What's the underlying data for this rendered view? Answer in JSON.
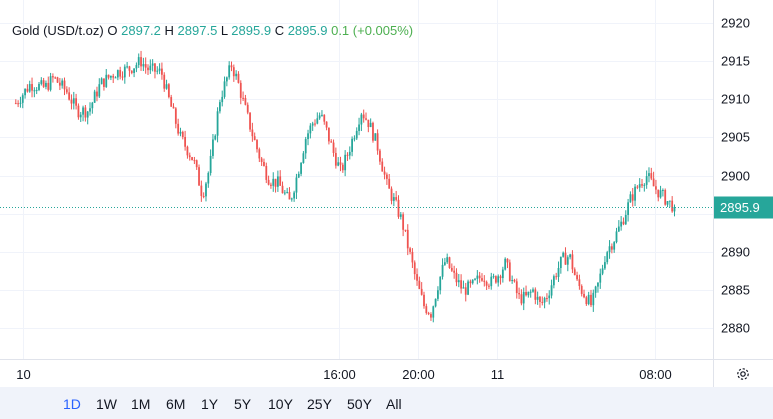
{
  "legend": {
    "symbol": "Gold (USD/t.oz)",
    "o_label": "O",
    "o_value": "2897.2",
    "h_label": "H",
    "h_value": "2897.5",
    "l_label": "L",
    "l_value": "2895.9",
    "c_label": "C",
    "c_value": "2895.9",
    "change": "0.1",
    "change_pct": "(+0.005%)"
  },
  "price_tag": "2895.9",
  "timeframes": [
    {
      "label": "1D",
      "active": true
    },
    {
      "label": "1W",
      "active": false
    },
    {
      "label": "1M",
      "active": false
    },
    {
      "label": "6M",
      "active": false
    },
    {
      "label": "1Y",
      "active": false
    },
    {
      "label": "5Y",
      "active": false
    },
    {
      "label": "10Y",
      "active": false
    },
    {
      "label": "25Y",
      "active": false
    },
    {
      "label": "50Y",
      "active": false
    },
    {
      "label": "All",
      "active": false
    }
  ],
  "colors": {
    "up": "#26a69a",
    "down": "#ef5350",
    "grid": "#f0f3fa",
    "active_tf": "#2962ff",
    "legend_up": "#4caf50",
    "price_line": "#26a69a"
  },
  "chart_data": {
    "type": "candlestick",
    "title": "Gold (USD/t.oz)",
    "y_ticks": [
      2880,
      2885,
      2890,
      2895,
      2900,
      2905,
      2910,
      2915,
      2920
    ],
    "ylim": [
      2876,
      2923
    ],
    "x_ticks": [
      {
        "label": "10",
        "hour": 0
      },
      {
        "label": "16:00",
        "hour": 16
      },
      {
        "label": "20:00",
        "hour": 20
      },
      {
        "label": "11",
        "hour": 24
      },
      {
        "label": "08:00",
        "hour": 32
      }
    ],
    "x_range_hours": [
      -1.15,
      34.95
    ],
    "last_price": 2895.9,
    "grid": true,
    "price_path": [
      [
        0,
        2909.5
      ],
      [
        1,
        2912
      ],
      [
        2,
        2911.5
      ],
      [
        2.6,
        2912.8
      ],
      [
        3.5,
        2911
      ],
      [
        4.2,
        2908.5
      ],
      [
        5,
        2908.5
      ],
      [
        5.8,
        2912
      ],
      [
        6.8,
        2913.5
      ],
      [
        7.8,
        2914
      ],
      [
        8.6,
        2915
      ],
      [
        9,
        2914
      ],
      [
        10.0,
        2913.5
      ],
      [
        10.5,
        2910
      ],
      [
        11.3,
        2905
      ],
      [
        12.2,
        2902
      ],
      [
        12.8,
        2897.5
      ],
      [
        13.3,
        2901
      ],
      [
        14.0,
        2910
      ],
      [
        14.8,
        2914.5
      ],
      [
        15.2,
        2912.5
      ],
      [
        15.7,
        2909
      ],
      [
        16.3,
        2905
      ],
      [
        16.9,
        2901.5
      ],
      [
        17.4,
        2899.5
      ],
      [
        18.0,
        2899
      ],
      [
        18.8,
        2896.5
      ],
      [
        19.3,
        2900
      ],
      [
        19.9,
        2905
      ],
      [
        20.4,
        2907
      ],
      [
        20.9,
        2908
      ],
      [
        21.3,
        2906
      ],
      [
        21.8,
        2903
      ],
      [
        22.3,
        2900.5
      ],
      [
        22.8,
        2903
      ],
      [
        23.3,
        2906
      ],
      [
        23.7,
        2908.5
      ],
      [
        24.2,
        2907
      ],
      [
        24.8,
        2904
      ],
      [
        25.5,
        2898.5
      ],
      [
        26.0,
        2896.5
      ],
      [
        26.5,
        2894
      ],
      [
        27.0,
        2890
      ],
      [
        27.5,
        2886
      ],
      [
        28.0,
        2883
      ],
      [
        28.5,
        2882
      ],
      [
        29.0,
        2886
      ],
      [
        29.5,
        2889
      ],
      [
        30.0,
        2887
      ],
      [
        30.7,
        2885
      ],
      [
        31.3,
        2885.5
      ],
      [
        32.0,
        2887
      ],
      [
        32.6,
        2886
      ],
      [
        33.1,
        2887
      ],
      [
        33.6,
        2888.5
      ],
      [
        34.0,
        2886.5
      ],
      [
        34.5,
        2884
      ],
      [
        35.0,
        2884
      ],
      [
        35.5,
        2885
      ],
      [
        36.0,
        2883
      ],
      [
        36.5,
        2884.5
      ],
      [
        37.0,
        2887
      ],
      [
        37.5,
        2889
      ],
      [
        38.0,
        2889.5
      ],
      [
        38.5,
        2886
      ],
      [
        39.0,
        2884.5
      ],
      [
        39.5,
        2883
      ],
      [
        40.0,
        2886
      ],
      [
        40.5,
        2890
      ],
      [
        41.0,
        2891.5
      ],
      [
        41.6,
        2894
      ],
      [
        42.2,
        2897
      ],
      [
        42.8,
        2899
      ],
      [
        43.3,
        2900
      ],
      [
        43.8,
        2898.5
      ],
      [
        44.3,
        2897.5
      ],
      [
        44.8,
        2896.5
      ],
      [
        45.2,
        2895.9
      ]
    ],
    "path_note_skip": true
  }
}
